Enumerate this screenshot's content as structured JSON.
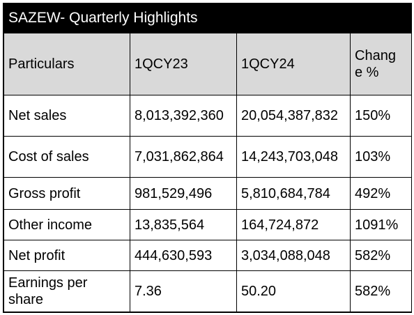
{
  "title": "SAZEW- Quarterly Highlights",
  "headers": [
    "Particulars",
    "1QCY23",
    "1QCY24",
    "Change %"
  ],
  "rows": [
    {
      "label": "Net sales",
      "q23": "8,013,392,360",
      "q24": "20,054,387,832",
      "change": "150%"
    },
    {
      "label": "Cost of sales",
      "q23": "7,031,862,864",
      "q24": "14,243,703,048",
      "change": "103%"
    },
    {
      "label": "Gross profit",
      "q23": "981,529,496",
      "q24": "5,810,684,784",
      "change": "492%"
    },
    {
      "label": "Other income",
      "q23": "13,835,564",
      "q24": "164,724,872",
      "change": "1091%"
    },
    {
      "label": "Net profit",
      "q23": "444,630,593",
      "q24": "3,034,088,048",
      "change": "582%"
    },
    {
      "label": "Earnings per share",
      "q23": "7.36",
      "q24": "50.20",
      "change": "582%"
    }
  ]
}
